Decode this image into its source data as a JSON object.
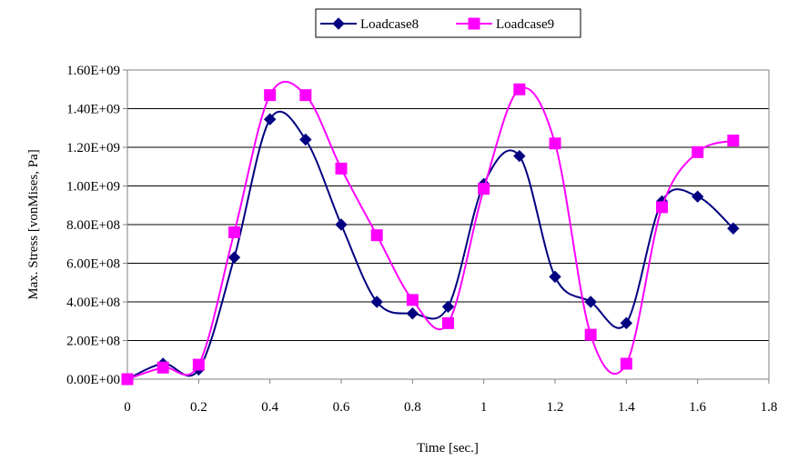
{
  "chart_data": {
    "type": "line",
    "title": "",
    "xlabel": "Time [sec.]",
    "ylabel": "Max. Stress [vonMises, Pa]",
    "xlim": [
      0,
      1.8
    ],
    "ylim": [
      0,
      1600000000
    ],
    "x_ticks": [
      0,
      0.2,
      0.4,
      0.6,
      0.8,
      1,
      1.2,
      1.4,
      1.6,
      1.8
    ],
    "x_tick_labels": [
      "0",
      "0.2",
      "0.4",
      "0.6",
      "0.8",
      "1",
      "1.2",
      "1.4",
      "1.6",
      "1.8"
    ],
    "y_ticks": [
      0,
      200000000,
      400000000,
      600000000,
      800000000,
      1000000000,
      1200000000,
      1400000000,
      1600000000
    ],
    "y_tick_labels": [
      "0.00E+00",
      "2.00E+08",
      "4.00E+08",
      "6.00E+08",
      "8.00E+08",
      "1.00E+09",
      "1.20E+09",
      "1.40E+09",
      "1.60E+09"
    ],
    "grid": "horizontal",
    "legend_position": "top-center",
    "series": [
      {
        "name": "Loadcase8",
        "color": "#000080",
        "marker": "diamond",
        "x": [
          0,
          0.1,
          0.2,
          0.3,
          0.4,
          0.5,
          0.6,
          0.7,
          0.8,
          0.9,
          1.0,
          1.1,
          1.2,
          1.3,
          1.4,
          1.5,
          1.6,
          1.7
        ],
        "values": [
          0,
          80000000,
          50000000,
          630000000,
          1345000000,
          1240000000,
          800000000,
          400000000,
          340000000,
          375000000,
          1010000000,
          1155000000,
          530000000,
          400000000,
          290000000,
          920000000,
          945000000,
          780000000
        ]
      },
      {
        "name": "Loadcase9",
        "color": "#ff00ff",
        "marker": "square",
        "x": [
          0,
          0.1,
          0.2,
          0.3,
          0.4,
          0.5,
          0.6,
          0.7,
          0.8,
          0.9,
          1.0,
          1.1,
          1.2,
          1.3,
          1.4,
          1.5,
          1.6,
          1.7
        ],
        "values": [
          0,
          60000000,
          75000000,
          760000000,
          1470000000,
          1470000000,
          1090000000,
          745000000,
          410000000,
          290000000,
          985000000,
          1500000000,
          1220000000,
          230000000,
          80000000,
          890000000,
          1175000000,
          1235000000
        ]
      }
    ]
  }
}
